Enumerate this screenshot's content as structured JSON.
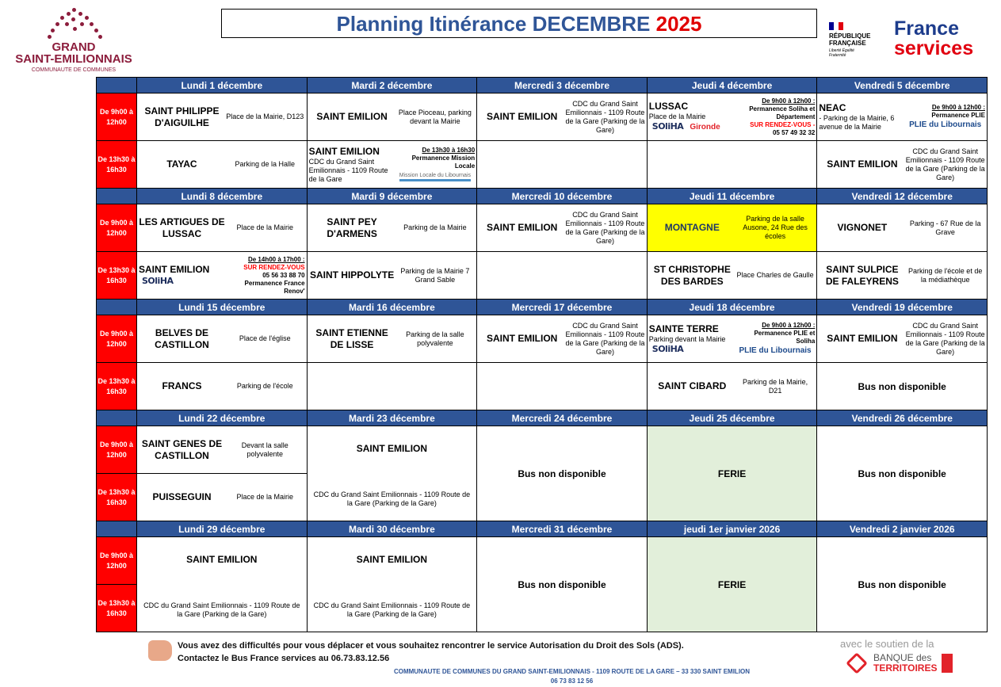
{
  "header": {
    "logo_left": {
      "line1": "GRAND",
      "line2": "SAINT-EMILIONNAIS",
      "line3": "COMMUNAUTE DE COMMUNES"
    },
    "title": "Planning Itinérance DECEMBRE",
    "title_year": "2025",
    "republique": {
      "l1": "RÉPUBLIQUE",
      "l2": "FRANÇAISE",
      "motto": "Liberté Égalité Fraternité"
    },
    "france_services": {
      "l1": "France",
      "l2": "services"
    }
  },
  "colors": {
    "header_blue": "#2f5597",
    "time_red": "#ff0000",
    "highlight_yellow": "#ffff00",
    "ferie_green": "#e2efda"
  },
  "times": {
    "am": "De 9h00 à 12h00",
    "pm": "De 13h30 à 16h30"
  },
  "weeks": [
    {
      "days": [
        "Lundi 1 décembre",
        "Mardi 2 décembre",
        "Mercredi 3 décembre",
        "Jeudi 4 décembre",
        "Vendredi 5 décembre"
      ],
      "am": [
        {
          "name": "SAINT PHILIPPE D'AIGUILHE",
          "addr": "Place de la Mairie, D123"
        },
        {
          "name": "SAINT EMILION",
          "addr": "Place Pioceau, parking devant la Mairie"
        },
        {
          "name": "SAINT EMILION",
          "addr": "CDC du Grand  Saint Emilionnais - 1109 Route de la Gare (Parking de la Gare)"
        },
        {
          "name": "LUSSAC",
          "addr": "Place de la Mairie",
          "below": true,
          "logos": [
            "SOliHA",
            "Gironde"
          ],
          "note": [
            {
              "t": "De 9h00 à 12h00 :",
              "s": "time"
            },
            {
              "t": "Permanence Soliha et Département",
              "s": ""
            },
            {
              "t": "SUR RENDEZ-VOUS -",
              "s": "red"
            },
            {
              "t": "05 57 49 32 32",
              "s": ""
            }
          ]
        },
        {
          "name": "NEAC",
          "addr": "- Parking de la Mairie, 6 avenue de la Mairie",
          "below": true,
          "logos": [
            "PLIE du Libournais"
          ],
          "note": [
            {
              "t": "De 9h00 à 12h00 :",
              "s": "time"
            },
            {
              "t": "Permanence PLIE",
              "s": ""
            }
          ]
        }
      ],
      "pm": [
        {
          "name": "TAYAC",
          "addr": "Parking de la Halle"
        },
        {
          "name": "SAINT EMILION",
          "addr": "CDC du Grand  Saint Emilionnais - 1109 Route de la Gare",
          "below": true,
          "logos": [
            "Mission Locale du Libournais"
          ],
          "note": [
            {
              "t": "De 13h30 à 16h30",
              "s": "time"
            },
            {
              "t": "Permanence Mission Locale",
              "s": ""
            }
          ]
        },
        {},
        {},
        {
          "name": "SAINT EMILION",
          "addr": "CDC du Grand  Saint Emilionnais - 1109 Route de la Gare (Parking de la Gare)"
        }
      ]
    },
    {
      "days": [
        "Lundi 8 décembre",
        "Mardi 9 décembre",
        "Mercredi 10 décembre",
        "Jeudi 11 décembre",
        "Vendredi 12 décembre"
      ],
      "am": [
        {
          "name": "LES ARTIGUES DE LUSSAC",
          "addr": "Place de la Mairie"
        },
        {
          "name": "SAINT PEY D'ARMENS",
          "addr": "Parking de la Mairie"
        },
        {
          "name": "SAINT EMILION",
          "addr": "CDC du Grand  Saint Emilionnais - 1109 Route de la Gare (Parking de la Gare)"
        },
        {
          "name": "MONTAGNE",
          "addr": "Parking de la salle Ausone, 24  Rue des écoles",
          "highlight": true
        },
        {
          "name": "VIGNONET",
          "addr": "Parking - 67 Rue de la Grave"
        }
      ],
      "pm": [
        {
          "name": "SAINT EMILION",
          "below": true,
          "logos": [
            "SOliHA"
          ],
          "note": [
            {
              "t": "De 14h00 à 17h00 :",
              "s": "time"
            },
            {
              "t": "SUR RENDEZ-VOUS",
              "s": "red"
            },
            {
              "t": "05 56 33 88 70",
              "s": ""
            },
            {
              "t": "Permanence France Renov'",
              "s": ""
            }
          ]
        },
        {
          "name": "SAINT HIPPOLYTE",
          "addr": "Parking de la Mairie 7 Grand Sable"
        },
        {},
        {
          "name": "ST CHRISTOPHE DES BARDES",
          "addr": "Place Charles de Gaulle"
        },
        {
          "name": "SAINT SULPICE DE FALEYRENS",
          "addr": "Parking de l'école et de la médiathèque"
        }
      ]
    },
    {
      "days": [
        "Lundi 15 décembre",
        "Mardi 16 décembre",
        "Mercredi 17 décembre",
        "Jeudi 18 décembre",
        "Vendredi 19 décembre"
      ],
      "am": [
        {
          "name": "BELVES DE CASTILLON",
          "addr": "Place de l'église"
        },
        {
          "name": "SAINT ETIENNE DE LISSE",
          "addr": "Parking de la salle polyvalente"
        },
        {
          "name": "SAINT EMILION",
          "addr": "CDC du Grand  Saint Emilionnais - 1109 Route de la Gare (Parking de la Gare)"
        },
        {
          "name": "SAINTE TERRE",
          "addr": "Parking devant la Mairie",
          "below": true,
          "logos": [
            "SOliHA",
            "PLIE du Libournais"
          ],
          "note": [
            {
              "t": "De 9h00 à 12h00 :",
              "s": "time"
            },
            {
              "t": "Permanence PLIE et Soliha",
              "s": ""
            }
          ]
        },
        {
          "name": "SAINT EMILION",
          "addr": "CDC du Grand  Saint Emilionnais - 1109 Route de la Gare (Parking de la Gare)"
        }
      ],
      "pm": [
        {
          "name": "FRANCS",
          "addr": "Parking de l'école"
        },
        {},
        {},
        {
          "name": "SAINT CIBARD",
          "addr": "Parking de la Mairie, D21"
        },
        {
          "text": "Bus non disponible"
        }
      ]
    },
    {
      "days": [
        "Lundi 22 décembre",
        "Mardi 23 décembre",
        "Mercredi 24 décembre",
        "Jeudi 25 décembre",
        "Vendredi 26 décembre"
      ],
      "am": [
        {
          "name": "SAINT GENES DE CASTILLON",
          "addr": "Devant la salle polyvalente"
        },
        {
          "merged": true,
          "name": "SAINT EMILION",
          "addr": "CDC du Grand  Saint Emilionnais - 1109 Route de la Gare (Parking de la Gare)"
        },
        {
          "merged": true,
          "text": "Bus non disponible"
        },
        {
          "merged": true,
          "text": "FERIE",
          "ferie": true
        },
        {
          "merged": true,
          "text": "Bus non disponible"
        }
      ],
      "pm": [
        {
          "name": "PUISSEGUIN",
          "addr": "Place de la Mairie"
        }
      ]
    },
    {
      "days": [
        "Lundi 29 décembre",
        "Mardi 30 décembre",
        "Mercredi 31 décembre",
        "jeudi 1er janvier 2026",
        "Vendredi 2 janvier 2026"
      ],
      "am": [
        {
          "merged": true,
          "name": "SAINT EMILION",
          "addr": "CDC du Grand  Saint Emilionnais - 1109 Route de la Gare (Parking de la Gare)"
        },
        {
          "merged": true,
          "name": "SAINT EMILION",
          "addr": "CDC du Grand  Saint Emilionnais - 1109 Route de la Gare (Parking de la Gare)"
        },
        {
          "merged": true,
          "text": "Bus non disponible"
        },
        {
          "merged": true,
          "text": "FERIE",
          "ferie": true
        },
        {
          "merged": true,
          "text": "Bus non disponible"
        }
      ],
      "pm": []
    }
  ],
  "footer": {
    "line1": "Vous avez des difficultés pour vous déplacer et vous souhaitez rencontrer le service Autorisation du Droit des Sols (ADS).",
    "line2": "Contactez le Bus France services au 06.73.83.12.56",
    "address": "COMMUNAUTE DE COMMUNES DU GRAND SAINT-EMILIONNAIS - 1109 ROUTE DE LA GARE – 33 330 SAINT EMILION",
    "phone": "06 73 83 12 56",
    "support": "avec le soutien de la",
    "bdt1": "BANQUE des",
    "bdt2": "TERRITOIRES"
  }
}
